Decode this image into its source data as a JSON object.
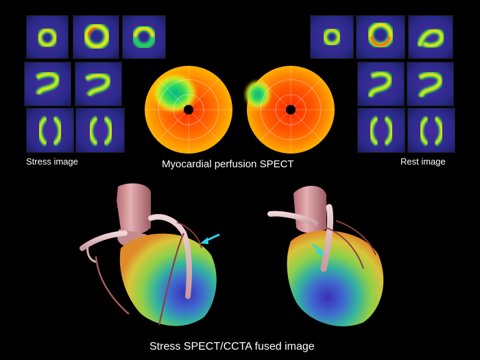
{
  "labels": {
    "stress": "Stress image",
    "rest": "Rest image",
    "spect": "Myocardial perfusion SPECT",
    "fused": "Stress SPECT/CCTA fused image"
  },
  "colors": {
    "background": "#000000",
    "tile_background": "#2a2a8a",
    "arrow": "#33d6e8"
  },
  "panels": {
    "stress_slices": [
      "short-axis",
      "short-axis",
      "short-axis",
      "vertical-long-axis",
      "vertical-long-axis",
      "horizontal-long-axis",
      "horizontal-long-axis"
    ],
    "rest_slices": [
      "short-axis",
      "short-axis",
      "short-axis",
      "vertical-long-axis",
      "vertical-long-axis",
      "horizontal-long-axis",
      "horizontal-long-axis"
    ],
    "polar_maps": [
      "stress-polar-map",
      "rest-polar-map"
    ],
    "fused_views": [
      "anterior-view",
      "lateral-view"
    ]
  }
}
